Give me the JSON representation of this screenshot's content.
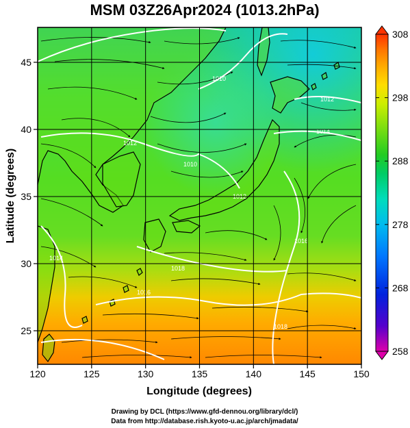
{
  "title": "MSM 03Z26Apr2024 (1013.2hPa)",
  "axes": {
    "xlabel": "Longitude (degrees)",
    "ylabel": "Latitude  (degrees)",
    "lon_range": [
      120,
      150
    ],
    "lat_range": [
      22.5,
      47.6
    ],
    "x_ticks": [
      "120",
      "125",
      "130",
      "135",
      "140",
      "145",
      "150"
    ],
    "x_tick_values": [
      120,
      125,
      130,
      135,
      140,
      145,
      150
    ],
    "y_ticks": [
      "25",
      "30",
      "35",
      "40",
      "45"
    ],
    "y_tick_values": [
      25,
      30,
      35,
      40,
      45
    ],
    "grid": true
  },
  "colorbar": {
    "range": [
      258,
      308
    ],
    "labels": [
      "308",
      "298",
      "288",
      "278",
      "268",
      "258"
    ],
    "label_values": [
      308,
      298,
      288,
      278,
      268,
      258
    ],
    "colors": [
      "#dd00aa",
      "#5500cc",
      "#0022dd",
      "#0077ff",
      "#00bbee",
      "#00ddbb",
      "#00cc66",
      "#22cc22",
      "#77dd11",
      "#ccee00",
      "#ffdd00",
      "#ffaa00",
      "#ff7700",
      "#ff3300"
    ]
  },
  "contour_labels": [
    "1010",
    "1012",
    "1014",
    "1012",
    "1010",
    "1012",
    "1016",
    "1018",
    "1016",
    "1018",
    "1014"
  ],
  "credits": {
    "line1": "Drawing by DCL (https://www.gfd-dennou.org/library/dcl/)",
    "line2": "Data from http://database.rish.kyoto-u.ac.jp/arch/jmadata/"
  },
  "colors": {
    "land_outline": "#000000",
    "streamline": "#000000",
    "isobar": "#ffffff"
  }
}
